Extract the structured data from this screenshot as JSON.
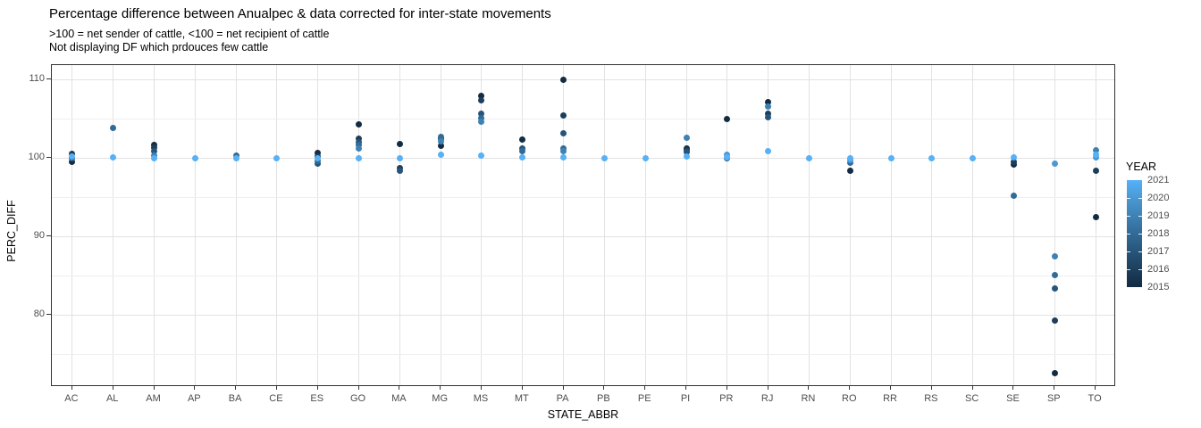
{
  "header": {
    "title": "Percentage difference between Anualpec & data corrected for inter-state movements",
    "subtitle1": ">100 = net sender of cattle, <100 = net recipient of cattle",
    "subtitle2": "Not displaying DF which prdouces few cattle"
  },
  "chart_data": {
    "type": "scatter",
    "title": "Percentage difference between Anualpec & data corrected for inter-state movements",
    "xlabel": "STATE_ABBR",
    "ylabel": "PERC_DIFF",
    "x_categories": [
      "AC",
      "AL",
      "AM",
      "AP",
      "BA",
      "CE",
      "ES",
      "GO",
      "MA",
      "MG",
      "MS",
      "MT",
      "PA",
      "PB",
      "PE",
      "PI",
      "PR",
      "RJ",
      "RN",
      "RO",
      "RR",
      "RS",
      "SC",
      "SE",
      "SP",
      "TO"
    ],
    "y_ticks_major": [
      110,
      100,
      90,
      80
    ],
    "y_ticks_minor": [
      105,
      95,
      85,
      75
    ],
    "ylim": [
      70.7,
      111.9
    ],
    "grid": true,
    "legend": {
      "title": "YEAR",
      "position": "right",
      "years": [
        "2021",
        "2020",
        "2019",
        "2018",
        "2017",
        "2016",
        "2015"
      ],
      "colors": {
        "2015": "#132B43",
        "2016": "#1D3F5C",
        "2017": "#27557A",
        "2018": "#326B96",
        "2019": "#3E82B4",
        "2020": "#4999D5",
        "2021": "#56B1F7"
      }
    },
    "points": [
      {
        "state": "AC",
        "year": 2016,
        "value": 100.5
      },
      {
        "state": "AC",
        "year": 2021,
        "value": 100.2
      },
      {
        "state": "AC",
        "year": 2018,
        "value": 99.9
      },
      {
        "state": "AC",
        "year": 2015,
        "value": 99.5
      },
      {
        "state": "AL",
        "year": 2018,
        "value": 103.8
      },
      {
        "state": "AL",
        "year": 2021,
        "value": 100.1
      },
      {
        "state": "AM",
        "year": 2015,
        "value": 101.6
      },
      {
        "state": "AM",
        "year": 2016,
        "value": 101.3
      },
      {
        "state": "AM",
        "year": 2017,
        "value": 100.8
      },
      {
        "state": "AM",
        "year": 2019,
        "value": 100.3
      },
      {
        "state": "AM",
        "year": 2021,
        "value": 100.0
      },
      {
        "state": "AP",
        "year": 2021,
        "value": 100.0
      },
      {
        "state": "BA",
        "year": 2018,
        "value": 100.3
      },
      {
        "state": "BA",
        "year": 2021,
        "value": 100.0
      },
      {
        "state": "CE",
        "year": 2021,
        "value": 100.0
      },
      {
        "state": "ES",
        "year": 2015,
        "value": 100.6
      },
      {
        "state": "ES",
        "year": 2016,
        "value": 100.2
      },
      {
        "state": "ES",
        "year": 2021,
        "value": 100.0
      },
      {
        "state": "ES",
        "year": 2018,
        "value": 99.6
      },
      {
        "state": "ES",
        "year": 2017,
        "value": 99.3
      },
      {
        "state": "GO",
        "year": 2015,
        "value": 104.3
      },
      {
        "state": "GO",
        "year": 2016,
        "value": 102.4
      },
      {
        "state": "GO",
        "year": 2017,
        "value": 102.0
      },
      {
        "state": "GO",
        "year": 2018,
        "value": 101.6
      },
      {
        "state": "GO",
        "year": 2019,
        "value": 101.2
      },
      {
        "state": "GO",
        "year": 2021,
        "value": 100.0
      },
      {
        "state": "MA",
        "year": 2015,
        "value": 101.8
      },
      {
        "state": "MA",
        "year": 2021,
        "value": 100.0
      },
      {
        "state": "MA",
        "year": 2016,
        "value": 98.7
      },
      {
        "state": "MA",
        "year": 2017,
        "value": 98.4
      },
      {
        "state": "MG",
        "year": 2018,
        "value": 102.7
      },
      {
        "state": "MG",
        "year": 2016,
        "value": 102.4
      },
      {
        "state": "MG",
        "year": 2019,
        "value": 102.1
      },
      {
        "state": "MG",
        "year": 2015,
        "value": 101.5
      },
      {
        "state": "MG",
        "year": 2021,
        "value": 100.4
      },
      {
        "state": "MS",
        "year": 2015,
        "value": 107.9
      },
      {
        "state": "MS",
        "year": 2016,
        "value": 107.3
      },
      {
        "state": "MS",
        "year": 2017,
        "value": 105.6
      },
      {
        "state": "MS",
        "year": 2018,
        "value": 105.1
      },
      {
        "state": "MS",
        "year": 2019,
        "value": 104.6
      },
      {
        "state": "MS",
        "year": 2021,
        "value": 100.3
      },
      {
        "state": "MT",
        "year": 2015,
        "value": 102.3
      },
      {
        "state": "MT",
        "year": 2017,
        "value": 101.2
      },
      {
        "state": "MT",
        "year": 2018,
        "value": 100.9
      },
      {
        "state": "MT",
        "year": 2021,
        "value": 100.1
      },
      {
        "state": "PA",
        "year": 2015,
        "value": 110.0
      },
      {
        "state": "PA",
        "year": 2016,
        "value": 105.4
      },
      {
        "state": "PA",
        "year": 2017,
        "value": 103.1
      },
      {
        "state": "PA",
        "year": 2018,
        "value": 101.2
      },
      {
        "state": "PA",
        "year": 2019,
        "value": 100.9
      },
      {
        "state": "PA",
        "year": 2021,
        "value": 100.1
      },
      {
        "state": "PB",
        "year": 2021,
        "value": 100.0
      },
      {
        "state": "PE",
        "year": 2021,
        "value": 100.0
      },
      {
        "state": "PI",
        "year": 2019,
        "value": 102.6
      },
      {
        "state": "PI",
        "year": 2015,
        "value": 101.2
      },
      {
        "state": "PI",
        "year": 2016,
        "value": 101.0
      },
      {
        "state": "PI",
        "year": 2017,
        "value": 100.7
      },
      {
        "state": "PI",
        "year": 2021,
        "value": 100.2
      },
      {
        "state": "PR",
        "year": 2015,
        "value": 105.0
      },
      {
        "state": "PR",
        "year": 2020,
        "value": 100.4
      },
      {
        "state": "PR",
        "year": 2021,
        "value": 100.1
      },
      {
        "state": "PR",
        "year": 2017,
        "value": 99.9
      },
      {
        "state": "RJ",
        "year": 2015,
        "value": 107.1
      },
      {
        "state": "RJ",
        "year": 2019,
        "value": 106.5
      },
      {
        "state": "RJ",
        "year": 2016,
        "value": 105.6
      },
      {
        "state": "RJ",
        "year": 2017,
        "value": 105.2
      },
      {
        "state": "RJ",
        "year": 2021,
        "value": 100.8
      },
      {
        "state": "RN",
        "year": 2021,
        "value": 100.0
      },
      {
        "state": "RO",
        "year": 2021,
        "value": 100.0
      },
      {
        "state": "RO",
        "year": 2020,
        "value": 99.7
      },
      {
        "state": "RO",
        "year": 2018,
        "value": 99.4
      },
      {
        "state": "RO",
        "year": 2015,
        "value": 98.4
      },
      {
        "state": "RR",
        "year": 2021,
        "value": 100.0
      },
      {
        "state": "RS",
        "year": 2021,
        "value": 100.0
      },
      {
        "state": "SC",
        "year": 2021,
        "value": 100.0
      },
      {
        "state": "SE",
        "year": 2021,
        "value": 100.1
      },
      {
        "state": "SE",
        "year": 2016,
        "value": 99.5
      },
      {
        "state": "SE",
        "year": 2015,
        "value": 99.2
      },
      {
        "state": "SE",
        "year": 2018,
        "value": 95.2
      },
      {
        "state": "SP",
        "year": 2020,
        "value": 99.3
      },
      {
        "state": "SP",
        "year": 2019,
        "value": 87.4
      },
      {
        "state": "SP",
        "year": 2018,
        "value": 85.1
      },
      {
        "state": "SP",
        "year": 2017,
        "value": 83.4
      },
      {
        "state": "SP",
        "year": 2016,
        "value": 79.3
      },
      {
        "state": "SP",
        "year": 2015,
        "value": 72.6
      },
      {
        "state": "TO",
        "year": 2019,
        "value": 101.0
      },
      {
        "state": "TO",
        "year": 2021,
        "value": 100.4
      },
      {
        "state": "TO",
        "year": 2020,
        "value": 100.1
      },
      {
        "state": "TO",
        "year": 2016,
        "value": 98.3
      },
      {
        "state": "TO",
        "year": 2015,
        "value": 92.4
      }
    ]
  }
}
